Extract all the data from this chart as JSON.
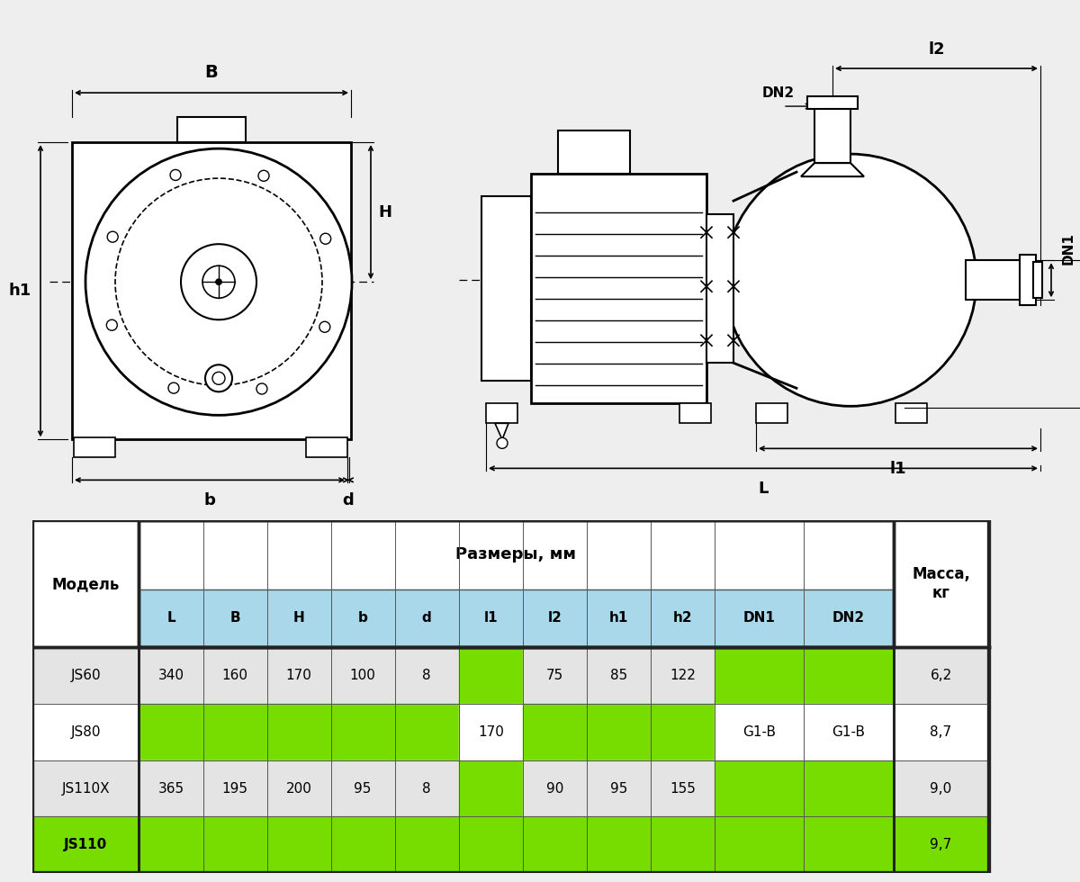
{
  "bg_color": "#eeeeee",
  "white": "#ffffff",
  "light_blue": "#a8d8ea",
  "green": "#77dd00",
  "dark": "#2a2a2a",
  "gray1": "#e4e4e4",
  "gray2": "#f0f0f0",
  "columns": [
    "L",
    "B",
    "H",
    "b",
    "d",
    "l1",
    "l2",
    "h1",
    "h2",
    "DN1",
    "DN2"
  ],
  "rows": [
    {
      "model": "JS60",
      "L": "340",
      "B": "160",
      "H": "170",
      "b": "100",
      "d": "8",
      "l1": "",
      "l2": "75",
      "h1": "85",
      "h2": "122",
      "DN1": "",
      "DN2": "",
      "mass": "6,2"
    },
    {
      "model": "JS80",
      "L": "",
      "B": "",
      "H": "",
      "b": "",
      "d": "",
      "l1": "170",
      "l2": "",
      "h1": "",
      "h2": "",
      "DN1": "G1-B",
      "DN2": "G1-B",
      "mass": "8,7"
    },
    {
      "model": "JS110X",
      "L": "365",
      "B": "195",
      "H": "200",
      "b": "95",
      "d": "8",
      "l1": "",
      "l2": "90",
      "h1": "95",
      "h2": "155",
      "DN1": "",
      "DN2": "",
      "mass": "9,0"
    },
    {
      "model": "JS110",
      "L": "",
      "B": "",
      "H": "",
      "b": "",
      "d": "",
      "l1": "",
      "l2": "",
      "h1": "",
      "h2": "",
      "DN1": "",
      "DN2": "",
      "mass": "9,7"
    }
  ],
  "green_cells": {
    "JS60": [
      "l1",
      "DN1",
      "DN2"
    ],
    "JS80": [
      "L",
      "B",
      "H",
      "b",
      "d",
      "l2",
      "h1",
      "h2"
    ],
    "JS110X": [
      "l1",
      "DN1",
      "DN2"
    ],
    "JS110": [
      "L",
      "B",
      "H",
      "b",
      "d",
      "l1",
      "l2",
      "h1",
      "h2",
      "DN1",
      "DN2"
    ]
  },
  "green_rows": [
    "JS110"
  ]
}
